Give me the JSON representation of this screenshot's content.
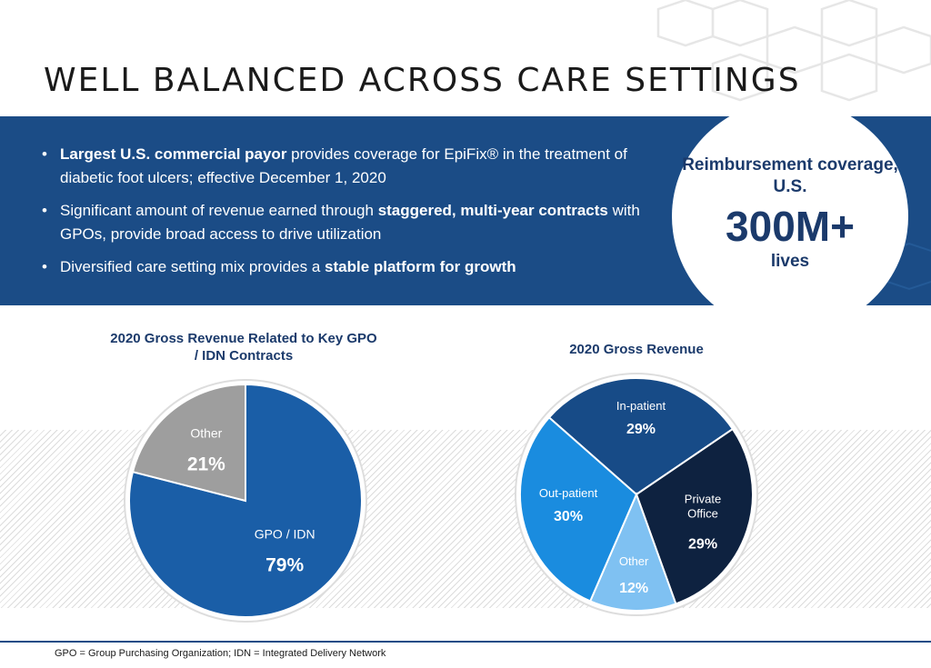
{
  "page": {
    "title": "WELL BALANCED ACROSS CARE SETTINGS"
  },
  "bullets": [
    {
      "bold_start": "Largest U.S. commercial payor",
      "text_after": " provides coverage for EpiFix® in the treatment of diabetic foot ulcers; effective December 1, 2020"
    },
    {
      "text_before": "Significant amount of revenue earned through ",
      "bold_mid": "staggered, multi-year contracts",
      "text_after": " with GPOs, provide broad access to drive utilization"
    },
    {
      "text_before": "Diversified care setting mix provides a ",
      "bold_end": "stable platform for growth"
    }
  ],
  "callout": {
    "label": "Reimbursement coverage, U.S.",
    "value": "300M+",
    "unit": "lives"
  },
  "footer": "GPO = Group Purchasing Organization; IDN = Integrated Delivery Network",
  "colors": {
    "navy": "#1b4c86",
    "text_navy": "#1b3a6b",
    "gpo_blue": "#1a5ea7",
    "other_gray": "#9e9e9e",
    "inpatient": "#174b87",
    "private_office": "#0e2240",
    "outpatient": "#1a8cdf",
    "other_light": "#7fc1f2"
  },
  "chart_data": [
    {
      "type": "pie",
      "title": "2020 Gross Revenue Related to Key GPO / IDN Contracts",
      "slices": [
        {
          "label": "GPO / IDN",
          "value": 79,
          "display": "79%",
          "color": "#1a5ea7"
        },
        {
          "label": "Other",
          "value": 21,
          "display": "21%",
          "color": "#9e9e9e"
        }
      ]
    },
    {
      "type": "pie",
      "title": "2020 Gross Revenue",
      "slices": [
        {
          "label": "In-patient",
          "value": 29,
          "display": "29%",
          "color": "#174b87"
        },
        {
          "label": "Private Office",
          "value": 29,
          "display": "29%",
          "color": "#0e2240"
        },
        {
          "label": "Other",
          "value": 12,
          "display": "12%",
          "color": "#7fc1f2"
        },
        {
          "label": "Out-patient",
          "value": 30,
          "display": "30%",
          "color": "#1a8cdf"
        }
      ]
    }
  ]
}
